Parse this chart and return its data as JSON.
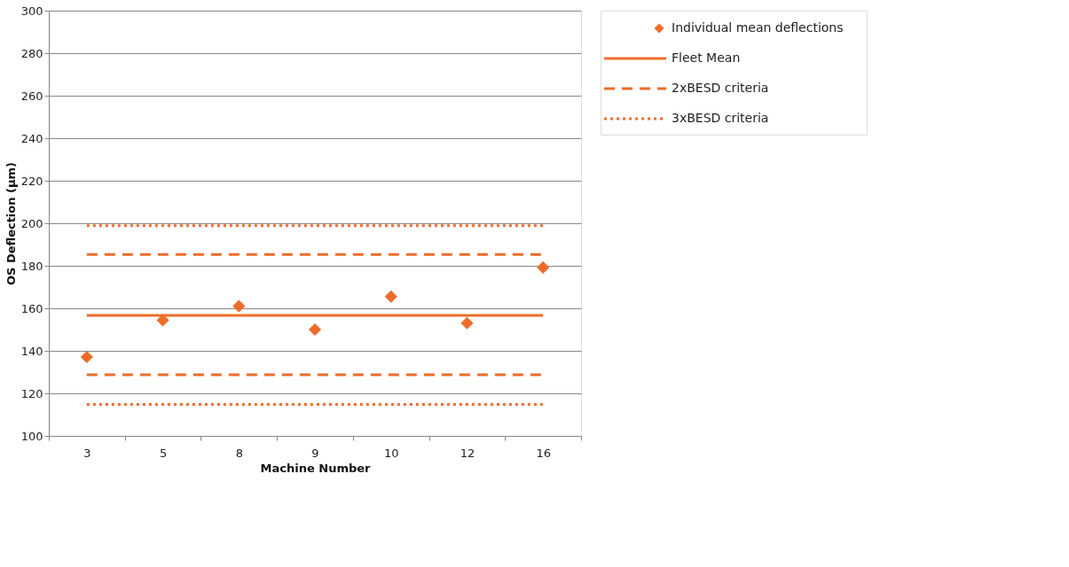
{
  "chart_data": {
    "type": "scatter",
    "xlabel": "Machine Number",
    "ylabel": "OS Deflection (µm)",
    "categories": [
      "3",
      "5",
      "8",
      "9",
      "10",
      "12",
      "16"
    ],
    "series": [
      {
        "name": "Individual mean deflections",
        "marker": "diamond",
        "color": "#ee6c2a",
        "values": [
          137.1,
          154.4,
          161,
          150,
          165.5,
          153,
          179.2
        ]
      },
      {
        "name": "Fleet Mean",
        "type": "line",
        "marker": "none",
        "line_style": "solid",
        "color": "#ee6c2a",
        "values": [
          156.7,
          156.7,
          156.7,
          156.7,
          156.7,
          156.7,
          156.7
        ]
      },
      {
        "name": "2xBESD criteria",
        "type": "line",
        "marker": "none",
        "line_style": "dashed",
        "color": "#ee6c2a",
        "values": [
          185.3,
          185.3,
          185.3,
          185.3,
          185.3,
          185.3,
          185.3
        ]
      },
      {
        "type": "line",
        "marker": "none",
        "line_style": "dashed",
        "color": "#ee6c2a",
        "values": [
          128.8,
          128.8,
          128.8,
          128.8,
          128.8,
          128.8,
          128.8
        ]
      },
      {
        "name": "3xBESD criteria",
        "type": "line",
        "marker": "none",
        "line_style": "dotted",
        "color": "#ee6c2a",
        "values": [
          198.9,
          198.9,
          198.9,
          198.9,
          198.9,
          198.9,
          198.9
        ]
      },
      {
        "type": "line",
        "marker": "none",
        "line_style": "dotted",
        "color": "#ee6c2a",
        "values": [
          114.8,
          114.8,
          114.8,
          114.8,
          114.8,
          114.8,
          114.8
        ]
      }
    ],
    "ylim": [
      100,
      300
    ],
    "yticks": [
      100,
      120,
      140,
      160,
      180,
      200,
      220,
      240,
      260,
      280,
      300
    ],
    "grid": "y",
    "legend": "right"
  }
}
